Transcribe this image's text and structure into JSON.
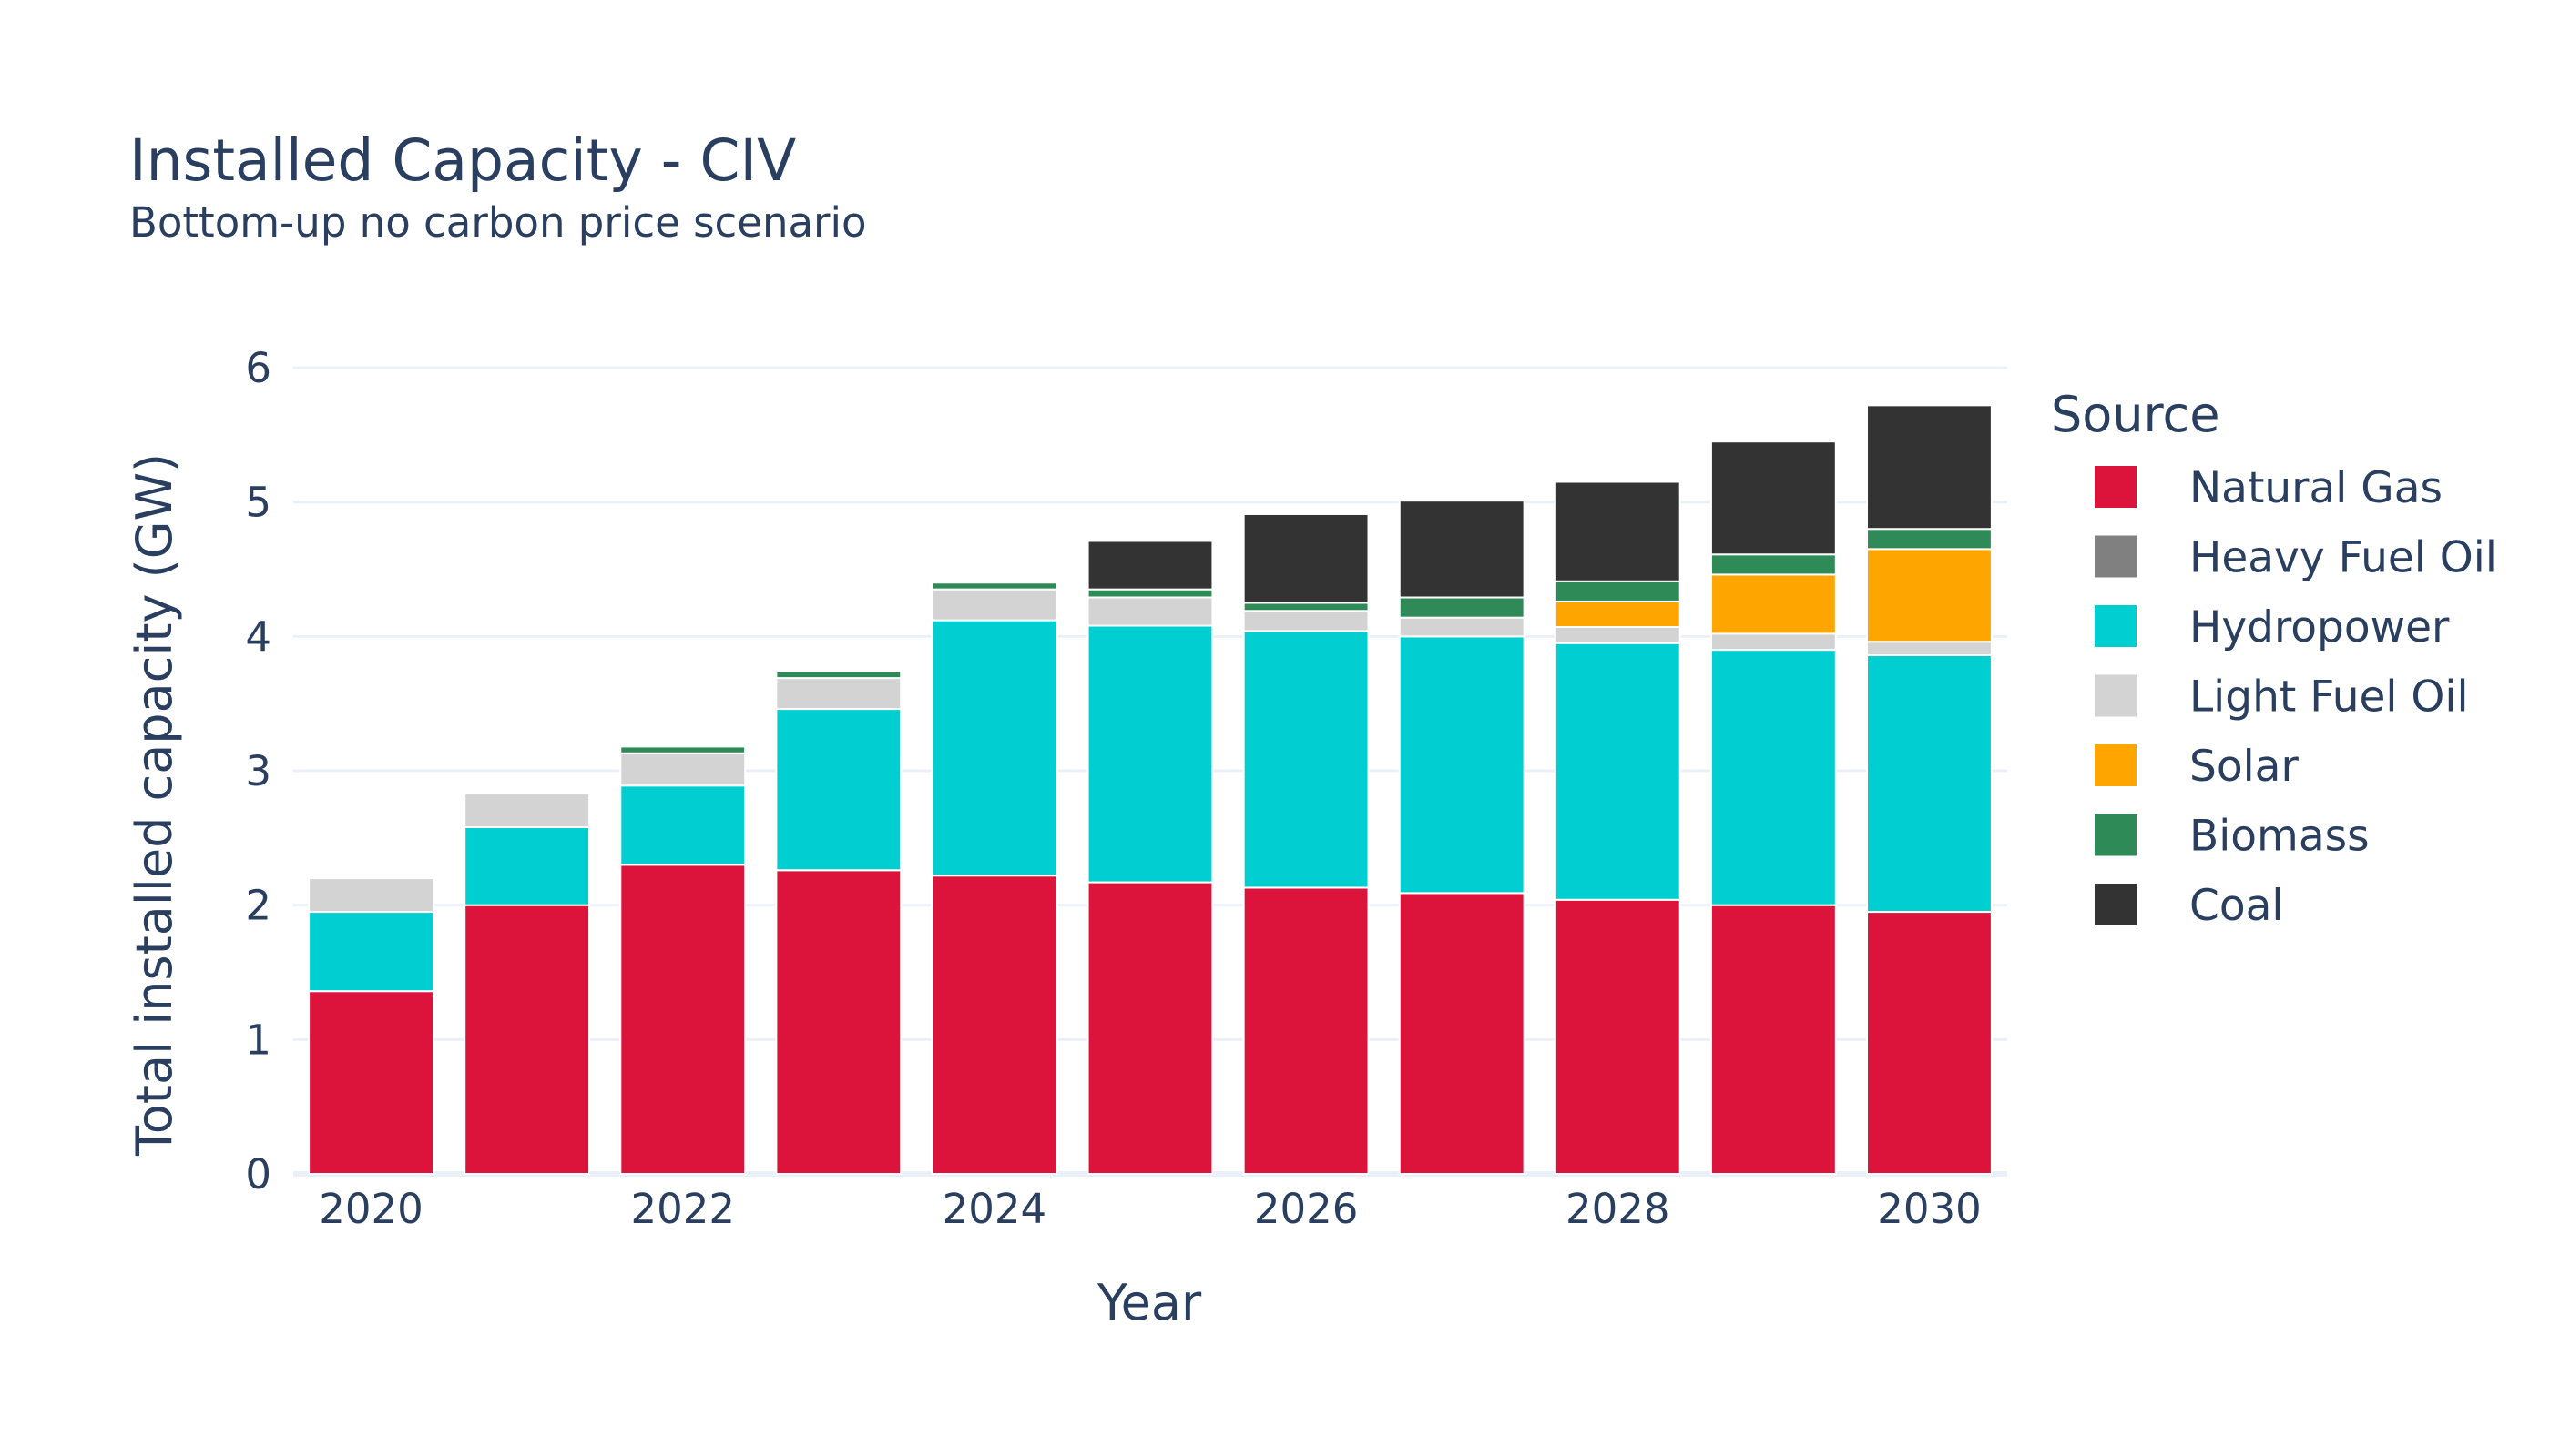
{
  "chart_data": {
    "type": "bar",
    "stacked": true,
    "title": "Installed Capacity - CIV",
    "subtitle": "Bottom-up no carbon price scenario",
    "xlabel": "Year",
    "ylabel": "Total installed capacity (GW)",
    "x": [
      2020,
      2021,
      2022,
      2023,
      2024,
      2025,
      2026,
      2027,
      2028,
      2029,
      2030
    ],
    "x_tick_labels": [
      "2020",
      "2022",
      "2024",
      "2026",
      "2028",
      "2030"
    ],
    "x_tick_values": [
      2020,
      2022,
      2024,
      2026,
      2028,
      2030
    ],
    "ylim": [
      0,
      6
    ],
    "y_tick_labels": [
      "0",
      "1",
      "2",
      "3",
      "4",
      "5",
      "6"
    ],
    "y_tick_values": [
      0,
      1,
      2,
      3,
      4,
      5,
      6
    ],
    "grid": true,
    "legend_title": "Source",
    "legend_position": "right",
    "series": [
      {
        "name": "Natural Gas",
        "color": "#DC143C",
        "values": [
          1.36,
          2.0,
          2.3,
          2.26,
          2.22,
          2.17,
          2.13,
          2.09,
          2.04,
          2.0,
          1.95
        ]
      },
      {
        "name": "Heavy Fuel Oil",
        "color": "#808080",
        "values": [
          0,
          0,
          0,
          0,
          0,
          0,
          0,
          0,
          0,
          0,
          0
        ]
      },
      {
        "name": "Hydropower",
        "color": "#00CED1",
        "values": [
          0.59,
          0.58,
          0.59,
          1.2,
          1.9,
          1.91,
          1.91,
          1.91,
          1.91,
          1.9,
          1.91
        ]
      },
      {
        "name": "Light Fuel Oil",
        "color": "#D3D3D3",
        "values": [
          0.25,
          0.25,
          0.24,
          0.23,
          0.23,
          0.21,
          0.15,
          0.14,
          0.12,
          0.12,
          0.1
        ]
      },
      {
        "name": "Solar",
        "color": "#FFA500",
        "values": [
          0,
          0,
          0,
          0,
          0,
          0,
          0,
          0,
          0.19,
          0.44,
          0.69
        ]
      },
      {
        "name": "Biomass",
        "color": "#2E8B57",
        "values": [
          0,
          0,
          0.05,
          0.05,
          0.05,
          0.06,
          0.06,
          0.15,
          0.15,
          0.15,
          0.15
        ]
      },
      {
        "name": "Coal",
        "color": "#333333",
        "values": [
          0,
          0,
          0,
          0,
          0,
          0.36,
          0.66,
          0.72,
          0.74,
          0.84,
          0.92
        ]
      }
    ]
  }
}
